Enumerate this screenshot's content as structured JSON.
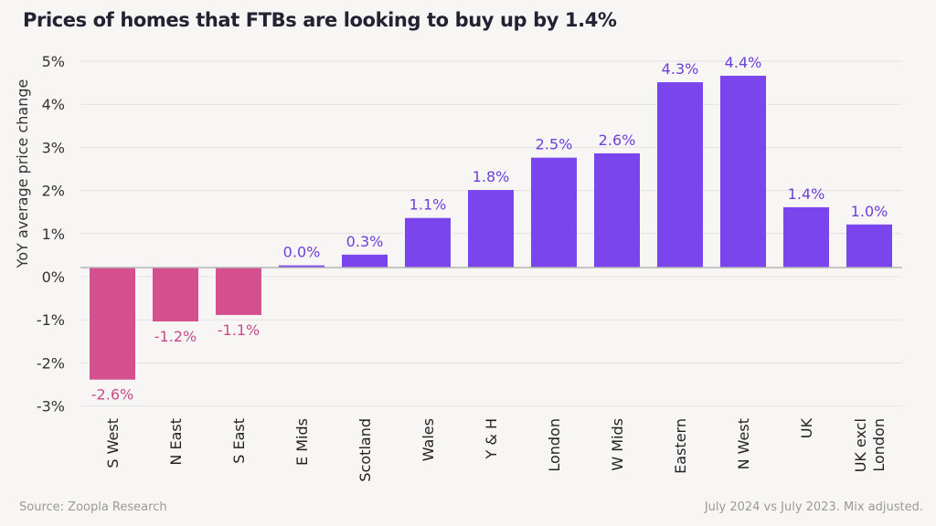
{
  "title": "Prices of homes that FTBs are looking to buy up by 1.4%",
  "footer": {
    "source": "Source: Zoopla Research",
    "note": "July 2024 vs July 2023. Mix adjusted."
  },
  "colors": {
    "negative_bar": "#d4508e",
    "positive_bar": "#7b45ee",
    "negative_label": "#c94b8a",
    "positive_label": "#6e3fd9"
  },
  "chart_data": {
    "type": "bar",
    "title": "Prices of homes that FTBs are looking to buy up by 1.4%",
    "xlabel": "",
    "ylabel": "YoY average price change",
    "ylim": [
      -3,
      5
    ],
    "yticks": [
      5,
      4,
      3,
      2,
      1,
      0,
      -1,
      -2,
      -3
    ],
    "ytick_labels": [
      "5%",
      "4%",
      "3%",
      "2%",
      "1%",
      "0%",
      "-1%",
      "-2%",
      "-3%"
    ],
    "grid": true,
    "categories": [
      [
        "S West"
      ],
      [
        "N East"
      ],
      [
        "S East"
      ],
      [
        "E Mids"
      ],
      [
        "Scotland"
      ],
      [
        "Wales"
      ],
      [
        "Y & H"
      ],
      [
        "London"
      ],
      [
        "W Mids"
      ],
      [
        "Eastern"
      ],
      [
        "N West"
      ],
      [
        "UK"
      ],
      [
        "UK excl",
        "London"
      ]
    ],
    "values": [
      -2.6,
      -1.2,
      -1.1,
      0.0,
      0.3,
      1.1,
      1.8,
      2.5,
      2.6,
      4.3,
      4.4,
      1.4,
      1.0
    ],
    "plotted_values": [
      -2.6,
      -1.25,
      -1.1,
      0.05,
      0.3,
      1.15,
      1.8,
      2.55,
      2.65,
      4.3,
      4.45,
      1.4,
      1.0
    ],
    "data_labels": [
      "-2.6%",
      "-1.2%",
      "-1.1%",
      "0.0%",
      "0.3%",
      "1.1%",
      "1.8%",
      "2.5%",
      "2.6%",
      "4.3%",
      "4.4%",
      "1.4%",
      "1.0%"
    ]
  }
}
